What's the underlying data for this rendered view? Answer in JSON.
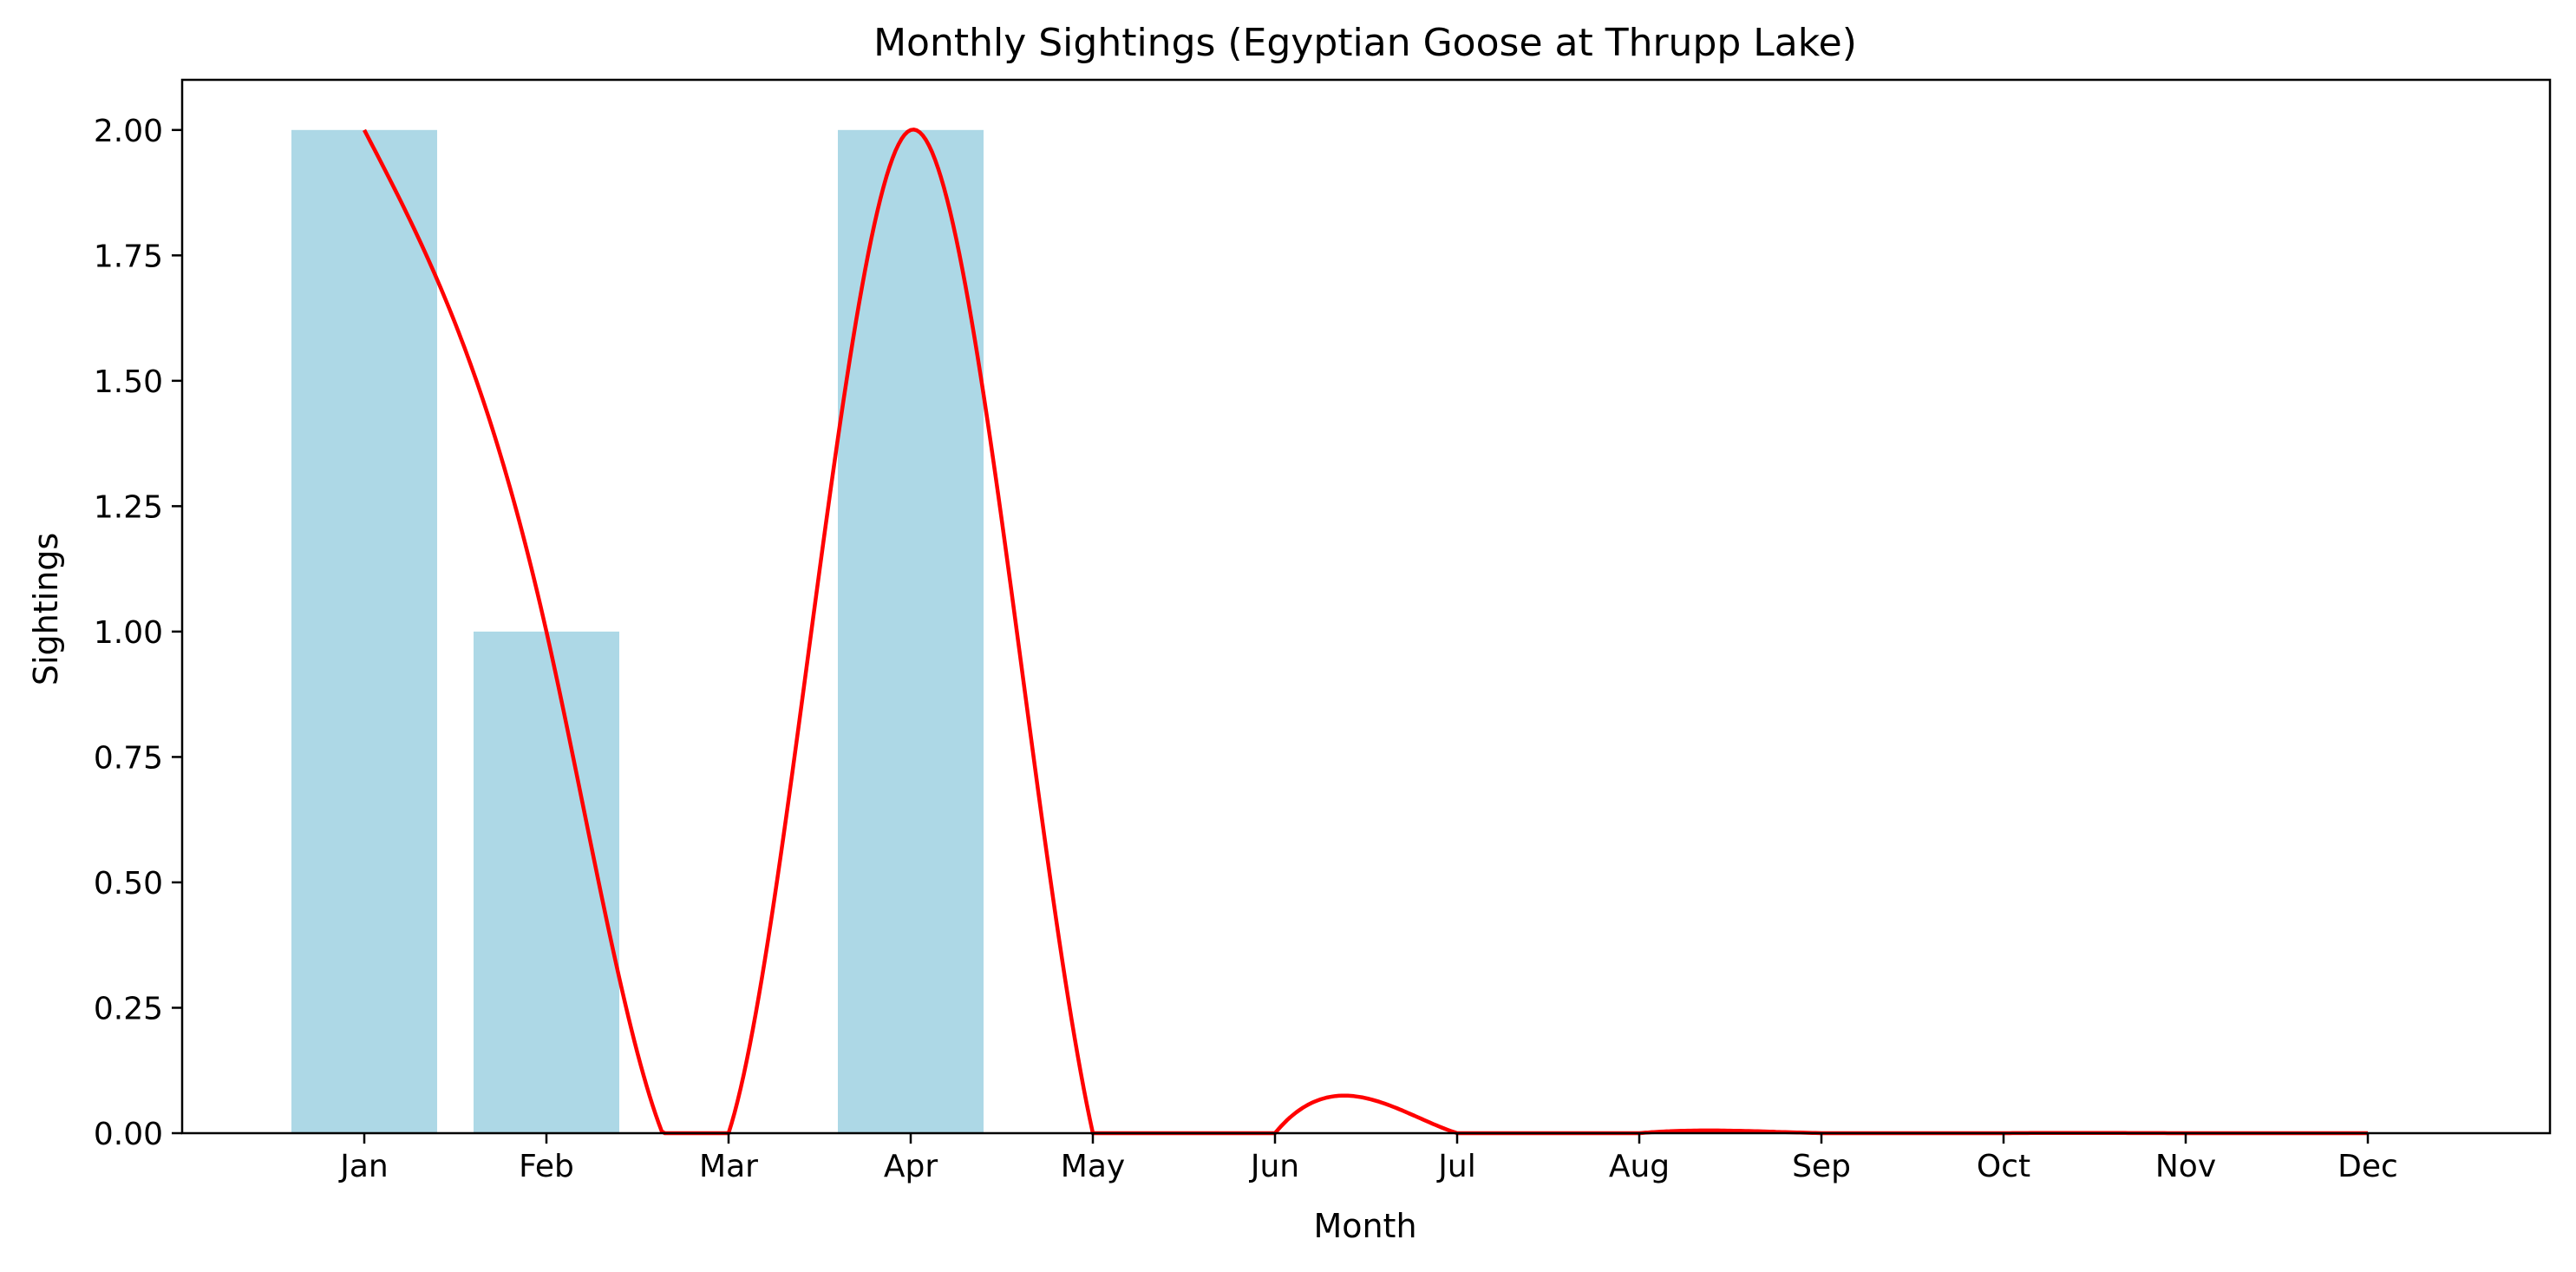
{
  "chart_data": {
    "type": "bar",
    "title": "Monthly Sightings (Egyptian Goose at Thrupp Lake)",
    "xlabel": "Month",
    "ylabel": "Sightings",
    "categories": [
      "Jan",
      "Feb",
      "Mar",
      "Apr",
      "May",
      "Jun",
      "Jul",
      "Aug",
      "Sep",
      "Oct",
      "Nov",
      "Dec"
    ],
    "values": [
      2,
      1,
      0,
      2,
      0,
      0,
      0,
      0,
      0,
      0,
      0,
      0
    ],
    "ylim": [
      0,
      2.1
    ],
    "yticks": [
      "0.00",
      "0.25",
      "0.50",
      "0.75",
      "1.00",
      "1.25",
      "1.50",
      "1.75",
      "2.00"
    ],
    "grid": false,
    "colors": {
      "bar": "#add8e6",
      "line": "#ff0000",
      "axis": "#000000"
    },
    "overlay": {
      "type": "line",
      "smoothing": "cubic spline",
      "clipped_at": 0,
      "values": [
        2,
        1,
        0,
        2,
        0,
        0,
        0,
        0,
        0,
        0,
        0,
        0
      ]
    }
  }
}
